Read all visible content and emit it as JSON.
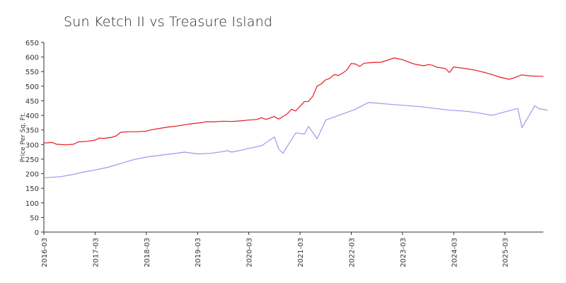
{
  "chart_data": {
    "type": "line",
    "title": "Sun Ketch II vs Treasure Island",
    "xlabel": "",
    "ylabel": "Price Per Sq. Ft.",
    "ylim": [
      0,
      650
    ],
    "xlim": [
      "2016-03",
      "2025-12"
    ],
    "yticks": [
      0,
      50,
      100,
      150,
      200,
      250,
      300,
      350,
      400,
      450,
      500,
      550,
      600,
      650
    ],
    "xticks": [
      "2016-03",
      "2017-03",
      "2018-03",
      "2019-03",
      "2020-03",
      "2021-03",
      "2022-03",
      "2023-03",
      "2024-03",
      "2025-03"
    ],
    "grid": false,
    "legend": "none",
    "colors": {
      "series1": "#e8191c",
      "series2": "#9999ee",
      "axis": "#333333"
    },
    "series": [
      {
        "points": [
          [
            "2016-03",
            305
          ],
          [
            "2016-05",
            307
          ],
          [
            "2016-06",
            301
          ],
          [
            "2016-08",
            299
          ],
          [
            "2016-10",
            301
          ],
          [
            "2016-11",
            309
          ],
          [
            "2017-01",
            311
          ],
          [
            "2017-03",
            315
          ],
          [
            "2017-04",
            322
          ],
          [
            "2017-05",
            321
          ],
          [
            "2017-07",
            325
          ],
          [
            "2017-08",
            330
          ],
          [
            "2017-09",
            342
          ],
          [
            "2017-11",
            344
          ],
          [
            "2018-01",
            344
          ],
          [
            "2018-03",
            346
          ],
          [
            "2018-04",
            350
          ],
          [
            "2018-06",
            355
          ],
          [
            "2018-08",
            360
          ],
          [
            "2018-10",
            363
          ],
          [
            "2018-12",
            368
          ],
          [
            "2019-02",
            372
          ],
          [
            "2019-04",
            375
          ],
          [
            "2019-05",
            378
          ],
          [
            "2019-07",
            378
          ],
          [
            "2019-09",
            380
          ],
          [
            "2019-11",
            379
          ],
          [
            "2020-01",
            381
          ],
          [
            "2020-03",
            384
          ],
          [
            "2020-05",
            386
          ],
          [
            "2020-06",
            392
          ],
          [
            "2020-07",
            386
          ],
          [
            "2020-09",
            396
          ],
          [
            "2020-10",
            387
          ],
          [
            "2020-12",
            405
          ],
          [
            "2021-01",
            421
          ],
          [
            "2021-02",
            415
          ],
          [
            "2021-04",
            447
          ],
          [
            "2021-05",
            448
          ],
          [
            "2021-06",
            466
          ],
          [
            "2021-07",
            500
          ],
          [
            "2021-08",
            508
          ],
          [
            "2021-09",
            522
          ],
          [
            "2021-10",
            527
          ],
          [
            "2021-11",
            540
          ],
          [
            "2021-12",
            537
          ],
          [
            "2022-01",
            545
          ],
          [
            "2022-02",
            556
          ],
          [
            "2022-03",
            578
          ],
          [
            "2022-04",
            576
          ],
          [
            "2022-05",
            568
          ],
          [
            "2022-06",
            579
          ],
          [
            "2022-08",
            581
          ],
          [
            "2022-10",
            582
          ],
          [
            "2022-11",
            587
          ],
          [
            "2023-01",
            597
          ],
          [
            "2023-03",
            591
          ],
          [
            "2023-05",
            580
          ],
          [
            "2023-06",
            575
          ],
          [
            "2023-08",
            570
          ],
          [
            "2023-09",
            574
          ],
          [
            "2023-10",
            572
          ],
          [
            "2023-11",
            565
          ],
          [
            "2024-01",
            561
          ],
          [
            "2024-02",
            547
          ],
          [
            "2024-03",
            566
          ],
          [
            "2024-05",
            562
          ],
          [
            "2024-06",
            560
          ],
          [
            "2024-08",
            555
          ],
          [
            "2024-10",
            548
          ],
          [
            "2024-12",
            540
          ],
          [
            "2025-02",
            530
          ],
          [
            "2025-04",
            524
          ],
          [
            "2025-05",
            528
          ],
          [
            "2025-07",
            539
          ],
          [
            "2025-09",
            535
          ],
          [
            "2025-11",
            534
          ],
          [
            "2025-12",
            534
          ]
        ]
      },
      {
        "points": [
          [
            "2016-03",
            186
          ],
          [
            "2016-07",
            190
          ],
          [
            "2016-10",
            198
          ],
          [
            "2016-12",
            205
          ],
          [
            "2017-03",
            213
          ],
          [
            "2017-06",
            222
          ],
          [
            "2017-09",
            235
          ],
          [
            "2017-12",
            248
          ],
          [
            "2018-03",
            257
          ],
          [
            "2018-06",
            263
          ],
          [
            "2018-09",
            268
          ],
          [
            "2018-12",
            274
          ],
          [
            "2019-03",
            268
          ],
          [
            "2019-06",
            270
          ],
          [
            "2019-09",
            276
          ],
          [
            "2019-10",
            279
          ],
          [
            "2019-11",
            274
          ],
          [
            "2020-01",
            280
          ],
          [
            "2020-03",
            287
          ],
          [
            "2020-06",
            296
          ],
          [
            "2020-09",
            326
          ],
          [
            "2020-10",
            285
          ],
          [
            "2020-11",
            270
          ],
          [
            "2021-02",
            340
          ],
          [
            "2021-04",
            336
          ],
          [
            "2021-05",
            362
          ],
          [
            "2021-07",
            320
          ],
          [
            "2021-09",
            384
          ],
          [
            "2022-04",
            421
          ],
          [
            "2022-07",
            444
          ],
          [
            "2023-01",
            437
          ],
          [
            "2023-07",
            430
          ],
          [
            "2023-10",
            425
          ],
          [
            "2024-02",
            418
          ],
          [
            "2024-06",
            414
          ],
          [
            "2024-09",
            408
          ],
          [
            "2024-12",
            400
          ],
          [
            "2025-06",
            424
          ],
          [
            "2025-07",
            358
          ],
          [
            "2025-10",
            433
          ],
          [
            "2025-11",
            423
          ],
          [
            "2026-01",
            418
          ]
        ]
      }
    ]
  }
}
